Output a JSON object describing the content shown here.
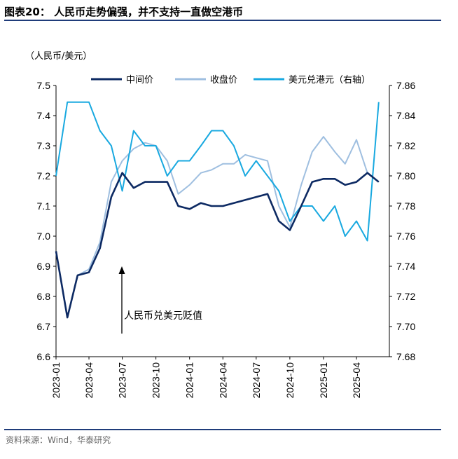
{
  "header": {
    "title": "图表20：  人民币走势偏强，并不支持一直做空港币"
  },
  "footer": {
    "source": "资料来源：Wind，华泰研究"
  },
  "colors": {
    "mid": "#0d2a63",
    "close": "#9fbfe0",
    "usdhkd": "#19a9e0",
    "rule": "#1f3c7a"
  },
  "chart_data": {
    "type": "line",
    "title": "",
    "ylabel": "（人民币/美元）",
    "ylabel_right": "",
    "annotation": "人民币兑美元贬值",
    "ylim": [
      6.6,
      7.5
    ],
    "ylim_right": [
      7.68,
      7.86
    ],
    "y_ticks": [
      "6.6",
      "6.7",
      "6.8",
      "6.9",
      "7.0",
      "7.1",
      "7.2",
      "7.3",
      "7.4",
      "7.5"
    ],
    "y_ticks_right": [
      "7.68",
      "7.70",
      "7.72",
      "7.74",
      "7.76",
      "7.78",
      "7.80",
      "7.82",
      "7.84",
      "7.86"
    ],
    "x_ticks": [
      "2023-01",
      "2023-04",
      "2023-07",
      "2023-10",
      "2024-01",
      "2024-04",
      "2024-07",
      "2024-10",
      "2025-01",
      "2025-04"
    ],
    "legend_position": "top",
    "series": [
      {
        "name": "中间价",
        "axis": "left",
        "x": [
          "2023-01",
          "2023-02",
          "2023-03",
          "2023-04",
          "2023-05",
          "2023-06",
          "2023-07",
          "2023-08",
          "2023-09",
          "2023-10",
          "2023-11",
          "2023-12",
          "2024-01",
          "2024-02",
          "2024-03",
          "2024-04",
          "2024-05",
          "2024-06",
          "2024-07",
          "2024-08",
          "2024-09",
          "2024-10",
          "2024-11",
          "2024-12",
          "2025-01",
          "2025-02",
          "2025-03",
          "2025-04",
          "2025-05",
          "2025-06"
        ],
        "values": [
          6.95,
          6.73,
          6.87,
          6.88,
          6.96,
          7.13,
          7.21,
          7.16,
          7.18,
          7.18,
          7.18,
          7.1,
          7.09,
          7.11,
          7.1,
          7.1,
          7.11,
          7.12,
          7.13,
          7.14,
          7.05,
          7.02,
          7.1,
          7.18,
          7.19,
          7.19,
          7.17,
          7.18,
          7.21,
          7.18
        ]
      },
      {
        "name": "收盘价",
        "axis": "left",
        "x": [
          "2023-01",
          "2023-02",
          "2023-03",
          "2023-04",
          "2023-05",
          "2023-06",
          "2023-07",
          "2023-08",
          "2023-09",
          "2023-10",
          "2023-11",
          "2023-12",
          "2024-01",
          "2024-02",
          "2024-03",
          "2024-04",
          "2024-05",
          "2024-06",
          "2024-07",
          "2024-08",
          "2024-09",
          "2024-10",
          "2024-11",
          "2024-12",
          "2025-01",
          "2025-02",
          "2025-03",
          "2025-04",
          "2025-05",
          "2025-06"
        ],
        "values": [
          6.95,
          6.73,
          6.87,
          6.89,
          6.98,
          7.18,
          7.25,
          7.29,
          7.31,
          7.3,
          7.25,
          7.14,
          7.17,
          7.21,
          7.22,
          7.24,
          7.24,
          7.27,
          7.26,
          7.25,
          7.1,
          7.03,
          7.17,
          7.28,
          7.33,
          7.28,
          7.24,
          7.32,
          7.21,
          7.18
        ]
      },
      {
        "name": "美元兑港元（右轴）",
        "axis": "right",
        "x": [
          "2023-01",
          "2023-02",
          "2023-03",
          "2023-04",
          "2023-05",
          "2023-06",
          "2023-07",
          "2023-08",
          "2023-09",
          "2023-10",
          "2023-11",
          "2023-12",
          "2024-01",
          "2024-02",
          "2024-03",
          "2024-04",
          "2024-05",
          "2024-06",
          "2024-07",
          "2024-08",
          "2024-09",
          "2024-10",
          "2024-11",
          "2024-12",
          "2025-01",
          "2025-02",
          "2025-03",
          "2025-04",
          "2025-05",
          "2025-06"
        ],
        "values": [
          7.8,
          7.849,
          7.849,
          7.849,
          7.83,
          7.82,
          7.79,
          7.83,
          7.82,
          7.82,
          7.8,
          7.81,
          7.81,
          7.82,
          7.83,
          7.83,
          7.82,
          7.8,
          7.81,
          7.8,
          7.79,
          7.77,
          7.78,
          7.78,
          7.77,
          7.78,
          7.76,
          7.77,
          7.757,
          7.849
        ]
      }
    ]
  }
}
